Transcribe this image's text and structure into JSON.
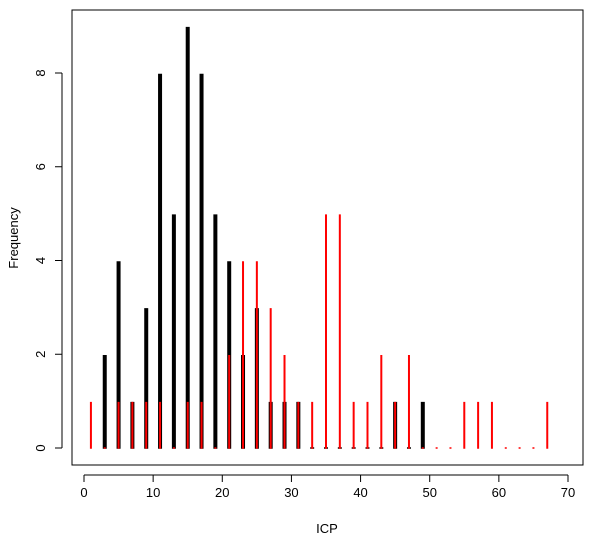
{
  "chart_data": {
    "type": "bar",
    "title": "",
    "xlabel": "ICP",
    "ylabel": "Frequency",
    "xlim": [
      -2,
      70
    ],
    "ylim": [
      0,
      9
    ],
    "x_ticks": [
      0,
      10,
      20,
      30,
      40,
      50,
      60,
      70
    ],
    "y_ticks": [
      0,
      2,
      4,
      6,
      8
    ],
    "grid": false,
    "legend": "none",
    "series": [
      {
        "color": "#000000",
        "x": [
          3,
          5,
          7,
          9,
          11,
          13,
          15,
          17,
          19,
          21,
          23,
          25,
          27,
          29,
          31,
          33,
          35,
          37,
          39,
          41,
          43,
          45,
          47,
          49
        ],
        "values": [
          2,
          4,
          1,
          3,
          8,
          5,
          9,
          8,
          5,
          4,
          2,
          3,
          1,
          1,
          1,
          0,
          0,
          0,
          0,
          0,
          0,
          1,
          0,
          1
        ]
      },
      {
        "color": "#ff0000",
        "x": [
          1,
          3,
          5,
          7,
          9,
          11,
          13,
          15,
          17,
          19,
          21,
          23,
          25,
          27,
          29,
          31,
          33,
          35,
          37,
          39,
          41,
          43,
          45,
          47,
          49,
          51,
          53,
          55,
          57,
          59,
          61,
          63,
          65,
          67
        ],
        "values": [
          1,
          0,
          1,
          1,
          1,
          1,
          0,
          1,
          1,
          0,
          2,
          4,
          4,
          3,
          2,
          1,
          1,
          5,
          5,
          1,
          1,
          2,
          1,
          2,
          0,
          0,
          0,
          1,
          1,
          1,
          0,
          0,
          0,
          1
        ]
      }
    ]
  }
}
